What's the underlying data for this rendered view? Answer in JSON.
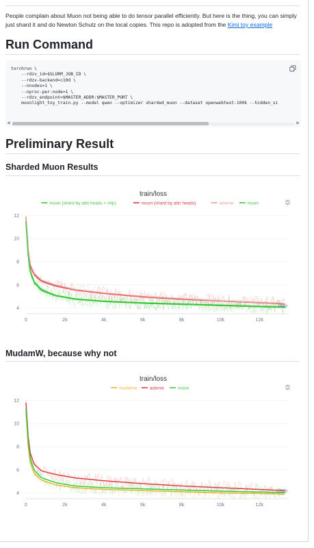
{
  "intro": {
    "text": "People complain about Muon not being able to do tensor parallel efficiently. But here is the thing, you can simply just shard it and do Newton Schulz on the local copies. This repo is adopted from the ",
    "link": "Kimi toy example"
  },
  "run_command": {
    "heading": "Run Command",
    "code": "torchrun \\\n    --rdzv_id=$SLURM_JOB_ID \\\n    --rdzv-backend=c10d \\\n    --nnodes=1 \\\n    --nproc-per-node=1 \\\n    --rdzv_endpoint=$MASTER_ADDR:$MASTER_PORT \\\n    moonlight_toy_train.py --model qwen --optimizer sharded_muon --dataset openwebtext-100k --hidden_si",
    "copy_icon": "copy-icon"
  },
  "preliminary_heading": "Preliminary Result",
  "sharded_heading": "Sharded Muon Results",
  "mudamw_heading": "MudamW, because why not",
  "colors": {
    "green": "#3fc83f",
    "red": "#dc3b3b",
    "pink": "#e6a0a0",
    "yellow": "#e6b832"
  },
  "chart_data": [
    {
      "type": "line",
      "title": "train/loss",
      "xlabel": "Step",
      "ylabel": "",
      "xlim": [
        0,
        13500
      ],
      "ylim": [
        3.5,
        12.5
      ],
      "x_ticks": [
        "0",
        "2k",
        "4k",
        "6k",
        "8k",
        "10k",
        "12k"
      ],
      "x_tick_values": [
        0,
        2000,
        4000,
        6000,
        8000,
        10000,
        12000
      ],
      "y_ticks": [
        "4",
        "6",
        "8",
        "10",
        "12"
      ],
      "y_tick_values": [
        4,
        6,
        8,
        10,
        12
      ],
      "legend": "top-center",
      "series": [
        {
          "name": "muon (shard by attn heads + mlp)",
          "color": "#3fc83f",
          "x": [
            0,
            150,
            400,
            800,
            1500,
            2500,
            4000,
            6000,
            8000,
            10000,
            12000,
            13300
          ],
          "y": [
            11.5,
            7.6,
            6.3,
            5.6,
            5.1,
            4.8,
            4.6,
            4.45,
            4.35,
            4.25,
            4.15,
            4.1
          ]
        },
        {
          "name": "muon (shard by attn heads)",
          "color": "#dc3b3b",
          "x": [
            0,
            150,
            400,
            800,
            1500,
            2500,
            4000,
            6000,
            8000,
            10000,
            12000,
            13300
          ],
          "y": [
            11.8,
            7.9,
            6.9,
            6.3,
            5.9,
            5.55,
            5.25,
            4.95,
            4.75,
            4.6,
            4.45,
            4.35
          ]
        },
        {
          "name": "adamw",
          "color": "#e6a0a0",
          "x": [
            0,
            150,
            400,
            800,
            1500,
            2500,
            4000,
            6000,
            8000,
            10000,
            12000,
            13300
          ],
          "y": [
            11.9,
            8.1,
            7.0,
            6.4,
            6.0,
            5.6,
            5.3,
            5.0,
            4.8,
            4.62,
            4.48,
            4.38
          ]
        },
        {
          "name": "muon",
          "color": "#3fc83f",
          "x": [
            0,
            150,
            400,
            800,
            1500,
            2500,
            4000,
            6000,
            8000,
            10000,
            12000,
            13300
          ],
          "y": [
            11.4,
            7.5,
            6.2,
            5.5,
            5.05,
            4.75,
            4.55,
            4.4,
            4.3,
            4.2,
            4.1,
            4.05
          ]
        }
      ]
    },
    {
      "type": "line",
      "title": "train/loss",
      "xlabel": "Step",
      "ylabel": "",
      "xlim": [
        0,
        13500
      ],
      "ylim": [
        3.5,
        12.5
      ],
      "x_ticks": [
        "0",
        "2k",
        "4k",
        "6k",
        "8k",
        "10k",
        "12k"
      ],
      "x_tick_values": [
        0,
        2000,
        4000,
        6000,
        8000,
        10000,
        12000
      ],
      "y_ticks": [
        "4",
        "6",
        "8",
        "10",
        "12"
      ],
      "y_tick_values": [
        4,
        6,
        8,
        10,
        12
      ],
      "legend": "top-center",
      "series": [
        {
          "name": "mudamw",
          "color": "#e6b832",
          "x": [
            0,
            150,
            400,
            800,
            1500,
            2500,
            4000,
            6000,
            8000,
            10000,
            12000,
            13300
          ],
          "y": [
            11.0,
            7.0,
            5.7,
            5.1,
            4.7,
            4.45,
            4.3,
            4.2,
            4.1,
            4.0,
            3.95,
            3.9
          ]
        },
        {
          "name": "adamw",
          "color": "#dc3b3b",
          "x": [
            0,
            150,
            400,
            800,
            1500,
            2500,
            4000,
            6000,
            8000,
            10000,
            12000,
            13300
          ],
          "y": [
            11.8,
            7.8,
            6.5,
            5.9,
            5.6,
            5.3,
            5.05,
            4.8,
            4.6,
            4.45,
            4.3,
            4.2
          ]
        },
        {
          "name": "muon",
          "color": "#3fc83f",
          "x": [
            0,
            150,
            400,
            800,
            1500,
            2500,
            4000,
            6000,
            8000,
            10000,
            12000,
            13300
          ],
          "y": [
            11.3,
            7.4,
            6.0,
            5.3,
            4.9,
            4.6,
            4.45,
            4.35,
            4.25,
            4.15,
            4.08,
            4.02
          ]
        }
      ]
    }
  ]
}
